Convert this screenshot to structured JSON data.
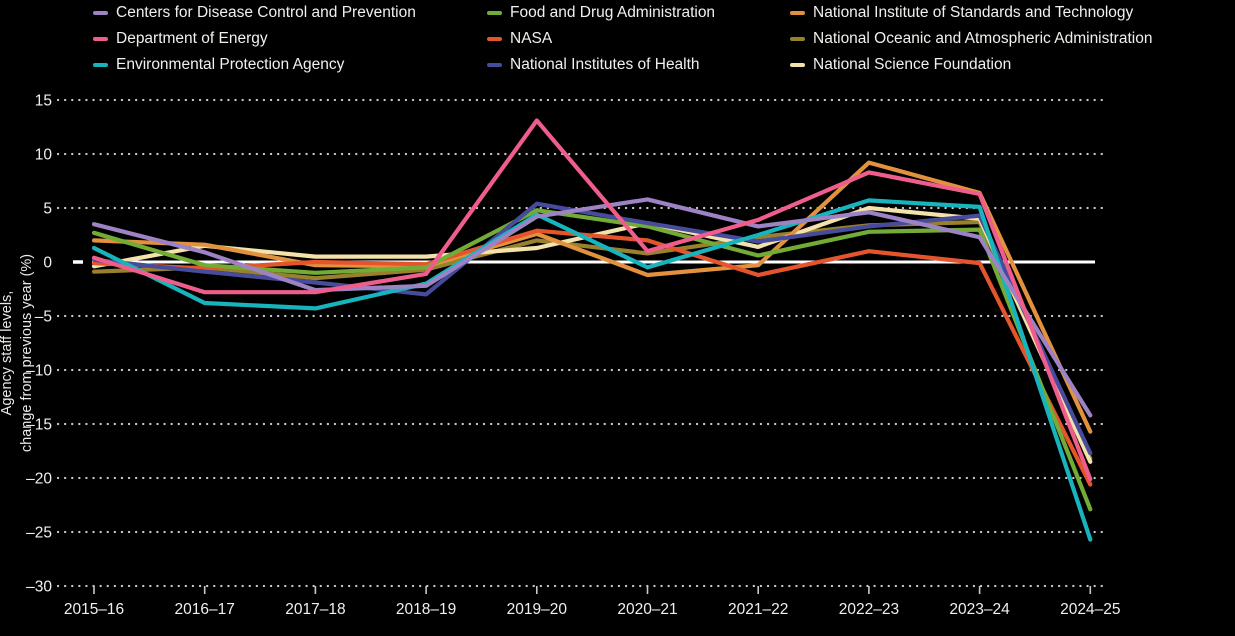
{
  "colors": {
    "background": "#000000",
    "text": "#f2f0ec",
    "grid_dots": "#c9c9c9",
    "zero_line": "#ffffff"
  },
  "legend": {
    "items": [
      {
        "label": "Centers for Disease Control and Prevention",
        "color": "#9d82c4"
      },
      {
        "label": "Department of Energy",
        "color": "#ee5d8b"
      },
      {
        "label": "Environmental Protection Agency",
        "color": "#18b4bd"
      },
      {
        "label": "Food and Drug Administration",
        "color": "#72ab35"
      },
      {
        "label": "NASA",
        "color": "#e4552e"
      },
      {
        "label": "National Institutes of Health",
        "color": "#474b9b"
      },
      {
        "label": "National Institute of Standards and Technology",
        "color": "#e2923e"
      },
      {
        "label": "National Oceanic and Atmospheric Administration",
        "color": "#97812c"
      },
      {
        "label": "National Science Foundation",
        "color": "#f3e2ac"
      }
    ]
  },
  "y_axis": {
    "title_line1": "Agency staff levels,",
    "title_line2": "change from previous year (%)",
    "tick_labels": [
      "15",
      "10",
      "5",
      "0",
      "–5",
      "–10",
      "–15",
      "–20",
      "–25",
      "–30"
    ],
    "tick_values": [
      15,
      10,
      5,
      0,
      -5,
      -10,
      -15,
      -20,
      -25,
      -30
    ]
  },
  "x_axis": {
    "tick_labels": [
      "2015–16",
      "2016–17",
      "2017–18",
      "2018–19",
      "2019–20",
      "2020–21",
      "2021–22",
      "2022–23",
      "2023–24",
      "2024–25"
    ]
  },
  "chart_data": {
    "type": "line",
    "title": "",
    "xlabel": "",
    "ylabel": "Agency staff levels, change from previous year (%)",
    "ylim": [
      -30,
      15
    ],
    "grid": "dotted horizontal gridlines every 5, solid white line at 0",
    "legend_position": "top",
    "categories": [
      "2015-16",
      "2016-17",
      "2017-18",
      "2018-19",
      "2019-20",
      "2020-21",
      "2021-22",
      "2022-23",
      "2023-24",
      "2024-25"
    ],
    "series": [
      {
        "name": "Centers for Disease Control and Prevention",
        "color": "#9d82c4",
        "values": [
          3.5,
          0.9,
          -2.6,
          -2.2,
          4.2,
          5.8,
          3.3,
          4.6,
          2.3,
          -14.2
        ]
      },
      {
        "name": "Department of Energy",
        "color": "#ee5d8b",
        "values": [
          0.4,
          -2.8,
          -2.8,
          -1.1,
          13.1,
          1.0,
          3.9,
          8.3,
          6.3,
          -20.1
        ]
      },
      {
        "name": "Environmental Protection Agency",
        "color": "#18b4bd",
        "values": [
          1.3,
          -3.8,
          -4.3,
          -2.0,
          4.4,
          -0.5,
          2.5,
          5.7,
          5.1,
          -25.7
        ]
      },
      {
        "name": "Food and Drug Administration",
        "color": "#72ab35",
        "values": [
          2.7,
          -0.3,
          -1.0,
          -0.5,
          4.8,
          3.3,
          0.6,
          2.8,
          3.0,
          -22.9
        ]
      },
      {
        "name": "NASA",
        "color": "#e4552e",
        "values": [
          -0.1,
          -0.6,
          0.0,
          -0.2,
          2.9,
          2.0,
          -1.2,
          1.0,
          -0.1,
          -20.6
        ]
      },
      {
        "name": "National Institutes of Health",
        "color": "#474b9b",
        "values": [
          0.2,
          -0.9,
          -1.9,
          -3.0,
          5.4,
          3.6,
          1.9,
          3.3,
          4.3,
          -17.7
        ]
      },
      {
        "name": "National Institute of Standards and Technology",
        "color": "#e2923e",
        "values": [
          2.0,
          1.6,
          -0.3,
          -0.4,
          2.6,
          -1.2,
          -0.3,
          9.2,
          6.4,
          -15.7
        ]
      },
      {
        "name": "National Oceanic and Atmospheric Administration",
        "color": "#97812c",
        "values": [
          -0.9,
          -0.5,
          -1.5,
          -0.7,
          2.0,
          0.8,
          2.3,
          3.4,
          3.7,
          -18.2
        ]
      },
      {
        "name": "National Science Foundation",
        "color": "#f3e2ac",
        "values": [
          -0.4,
          1.5,
          0.5,
          0.5,
          1.3,
          3.6,
          1.4,
          5.0,
          4.0,
          -18.5
        ]
      }
    ]
  }
}
